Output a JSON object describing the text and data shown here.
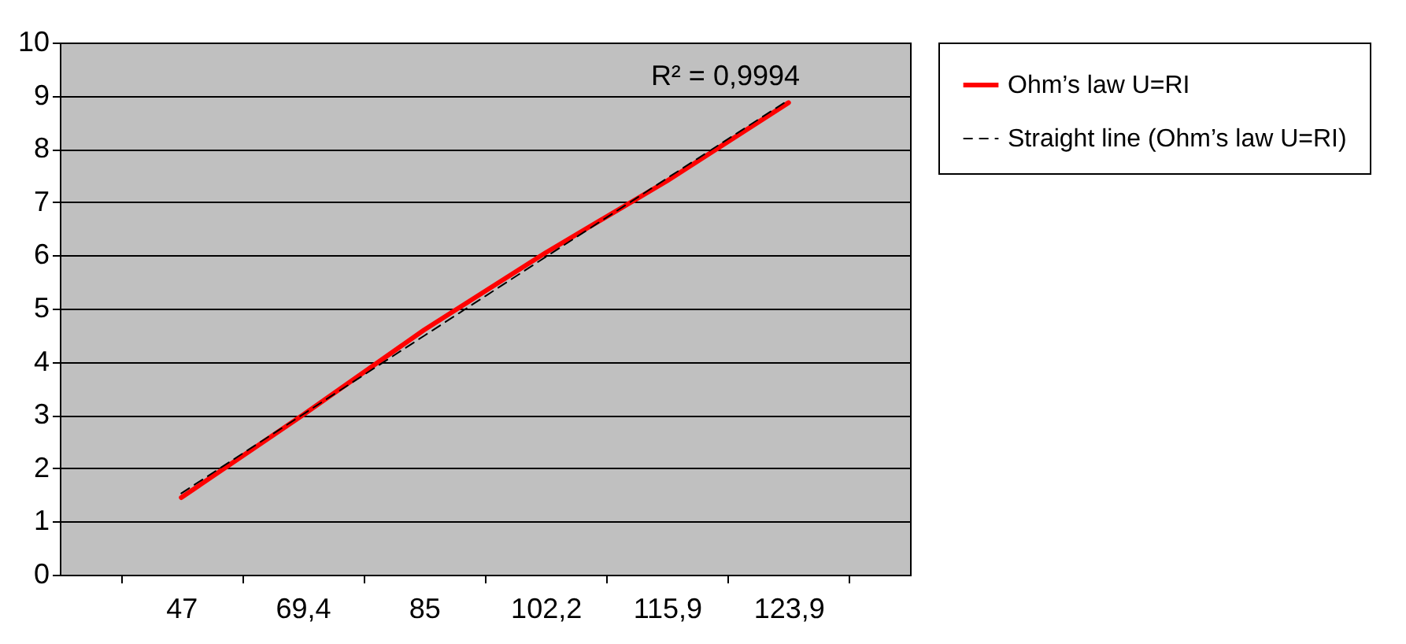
{
  "chart_data": {
    "type": "line",
    "categories": [
      "47",
      "69,4",
      "85",
      "102,2",
      "115,9",
      "123,9"
    ],
    "series": [
      {
        "name": "Ohm’s law U=RI",
        "color": "#ff0000",
        "line_style": "solid",
        "values": [
          1.45,
          3.0,
          4.6,
          6.05,
          7.4,
          8.87
        ]
      },
      {
        "name": "Straight line (Ohm’s law U=RI)",
        "color": "#000000",
        "line_style": "dashed",
        "values": [
          1.53,
          3.01,
          4.49,
          5.97,
          7.45,
          8.92
        ]
      }
    ],
    "ylim": [
      0,
      10
    ],
    "yticks": [
      0,
      1,
      2,
      3,
      4,
      5,
      6,
      7,
      8,
      9,
      10
    ],
    "grid": "y",
    "legend": "right",
    "marker": "none",
    "annotations": [
      "R² = 0,9994"
    ]
  }
}
